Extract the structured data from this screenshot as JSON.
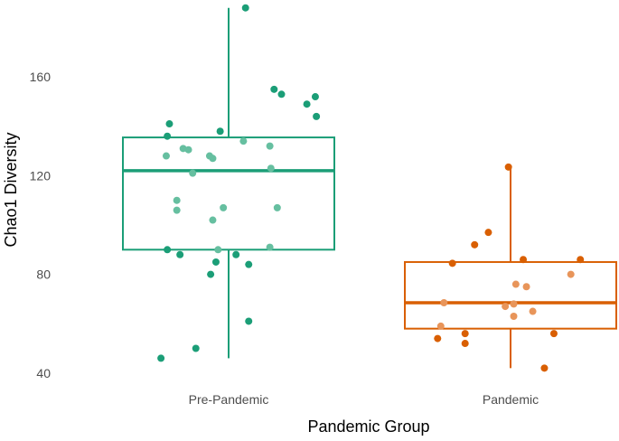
{
  "chart_data": {
    "type": "boxplot",
    "xlabel": "Pandemic Group",
    "ylabel": "Chao1 Diversity",
    "categories": [
      "Pre-Pandemic",
      "Pandemic"
    ],
    "ylim": [
      37,
      189
    ],
    "yticks": [
      40,
      80,
      120,
      160
    ],
    "grid": false,
    "legend": "none",
    "colors": {
      "Pre-Pandemic": "#1b9e77",
      "Pandemic": "#d95f02",
      "Pre-Pandemic-light": "#66bfa0",
      "Pandemic-light": "#e8955a"
    },
    "boxes": [
      {
        "category": "Pre-Pandemic",
        "whisker_low": 46,
        "q1": 90,
        "median": 122,
        "q3": 135.5,
        "whisker_high": 188
      },
      {
        "category": "Pandemic",
        "whisker_low": 42,
        "q1": 58,
        "median": 68.5,
        "q3": 85,
        "whisker_high": 123.5
      }
    ],
    "points": [
      {
        "category": "Pre-Pandemic",
        "jitter": 0.16,
        "y": 188,
        "shade": "dark"
      },
      {
        "category": "Pre-Pandemic",
        "jitter": 0.43,
        "y": 155,
        "shade": "dark"
      },
      {
        "category": "Pre-Pandemic",
        "jitter": 0.5,
        "y": 153,
        "shade": "dark"
      },
      {
        "category": "Pre-Pandemic",
        "jitter": 0.74,
        "y": 149,
        "shade": "dark"
      },
      {
        "category": "Pre-Pandemic",
        "jitter": 0.82,
        "y": 152,
        "shade": "dark"
      },
      {
        "category": "Pre-Pandemic",
        "jitter": 0.83,
        "y": 144,
        "shade": "dark"
      },
      {
        "category": "Pre-Pandemic",
        "jitter": -0.56,
        "y": 141,
        "shade": "dark"
      },
      {
        "category": "Pre-Pandemic",
        "jitter": -0.58,
        "y": 136,
        "shade": "dark"
      },
      {
        "category": "Pre-Pandemic",
        "jitter": -0.08,
        "y": 138,
        "shade": "dark"
      },
      {
        "category": "Pre-Pandemic",
        "jitter": -0.58,
        "y": 90,
        "shade": "dark"
      },
      {
        "category": "Pre-Pandemic",
        "jitter": -0.46,
        "y": 88,
        "shade": "dark"
      },
      {
        "category": "Pre-Pandemic",
        "jitter": -0.12,
        "y": 85,
        "shade": "dark"
      },
      {
        "category": "Pre-Pandemic",
        "jitter": -0.17,
        "y": 80,
        "shade": "dark"
      },
      {
        "category": "Pre-Pandemic",
        "jitter": 0.07,
        "y": 88,
        "shade": "dark"
      },
      {
        "category": "Pre-Pandemic",
        "jitter": 0.19,
        "y": 84,
        "shade": "dark"
      },
      {
        "category": "Pre-Pandemic",
        "jitter": 0.19,
        "y": 61,
        "shade": "dark"
      },
      {
        "category": "Pre-Pandemic",
        "jitter": -0.31,
        "y": 50,
        "shade": "dark"
      },
      {
        "category": "Pre-Pandemic",
        "jitter": -0.64,
        "y": 46,
        "shade": "dark"
      },
      {
        "category": "Pre-Pandemic",
        "jitter": -0.59,
        "y": 128,
        "shade": "light"
      },
      {
        "category": "Pre-Pandemic",
        "jitter": -0.43,
        "y": 131,
        "shade": "light"
      },
      {
        "category": "Pre-Pandemic",
        "jitter": -0.38,
        "y": 130.5,
        "shade": "light"
      },
      {
        "category": "Pre-Pandemic",
        "jitter": -0.34,
        "y": 121,
        "shade": "light"
      },
      {
        "category": "Pre-Pandemic",
        "jitter": -0.18,
        "y": 128,
        "shade": "light"
      },
      {
        "category": "Pre-Pandemic",
        "jitter": -0.15,
        "y": 127,
        "shade": "light"
      },
      {
        "category": "Pre-Pandemic",
        "jitter": 0.14,
        "y": 134,
        "shade": "light"
      },
      {
        "category": "Pre-Pandemic",
        "jitter": 0.39,
        "y": 132,
        "shade": "light"
      },
      {
        "category": "Pre-Pandemic",
        "jitter": 0.4,
        "y": 123,
        "shade": "light"
      },
      {
        "category": "Pre-Pandemic",
        "jitter": -0.49,
        "y": 110,
        "shade": "light"
      },
      {
        "category": "Pre-Pandemic",
        "jitter": -0.49,
        "y": 106,
        "shade": "light"
      },
      {
        "category": "Pre-Pandemic",
        "jitter": -0.15,
        "y": 102,
        "shade": "light"
      },
      {
        "category": "Pre-Pandemic",
        "jitter": -0.05,
        "y": 107,
        "shade": "light"
      },
      {
        "category": "Pre-Pandemic",
        "jitter": 0.46,
        "y": 107,
        "shade": "light"
      },
      {
        "category": "Pre-Pandemic",
        "jitter": -0.1,
        "y": 90,
        "shade": "light"
      },
      {
        "category": "Pre-Pandemic",
        "jitter": 0.39,
        "y": 91,
        "shade": "light"
      },
      {
        "category": "Pandemic",
        "jitter": -0.02,
        "y": 123.5,
        "shade": "dark"
      },
      {
        "category": "Pandemic",
        "jitter": -0.34,
        "y": 92,
        "shade": "dark"
      },
      {
        "category": "Pandemic",
        "jitter": -0.21,
        "y": 97,
        "shade": "dark"
      },
      {
        "category": "Pandemic",
        "jitter": 0.12,
        "y": 86,
        "shade": "dark"
      },
      {
        "category": "Pandemic",
        "jitter": 0.66,
        "y": 86,
        "shade": "dark"
      },
      {
        "category": "Pandemic",
        "jitter": -0.55,
        "y": 84.5,
        "shade": "dark"
      },
      {
        "category": "Pandemic",
        "jitter": -0.69,
        "y": 54,
        "shade": "dark"
      },
      {
        "category": "Pandemic",
        "jitter": -0.43,
        "y": 56,
        "shade": "dark"
      },
      {
        "category": "Pandemic",
        "jitter": -0.43,
        "y": 52,
        "shade": "dark"
      },
      {
        "category": "Pandemic",
        "jitter": 0.41,
        "y": 56,
        "shade": "dark"
      },
      {
        "category": "Pandemic",
        "jitter": 0.32,
        "y": 42,
        "shade": "dark"
      },
      {
        "category": "Pandemic",
        "jitter": -0.66,
        "y": 59,
        "shade": "light"
      },
      {
        "category": "Pandemic",
        "jitter": -0.63,
        "y": 68.5,
        "shade": "light"
      },
      {
        "category": "Pandemic",
        "jitter": 0.05,
        "y": 76,
        "shade": "light"
      },
      {
        "category": "Pandemic",
        "jitter": 0.15,
        "y": 75,
        "shade": "light"
      },
      {
        "category": "Pandemic",
        "jitter": 0.57,
        "y": 80,
        "shade": "light"
      },
      {
        "category": "Pandemic",
        "jitter": -0.05,
        "y": 67,
        "shade": "light"
      },
      {
        "category": "Pandemic",
        "jitter": 0.03,
        "y": 68,
        "shade": "light"
      },
      {
        "category": "Pandemic",
        "jitter": 0.21,
        "y": 65,
        "shade": "light"
      },
      {
        "category": "Pandemic",
        "jitter": 0.03,
        "y": 63,
        "shade": "light"
      }
    ]
  }
}
